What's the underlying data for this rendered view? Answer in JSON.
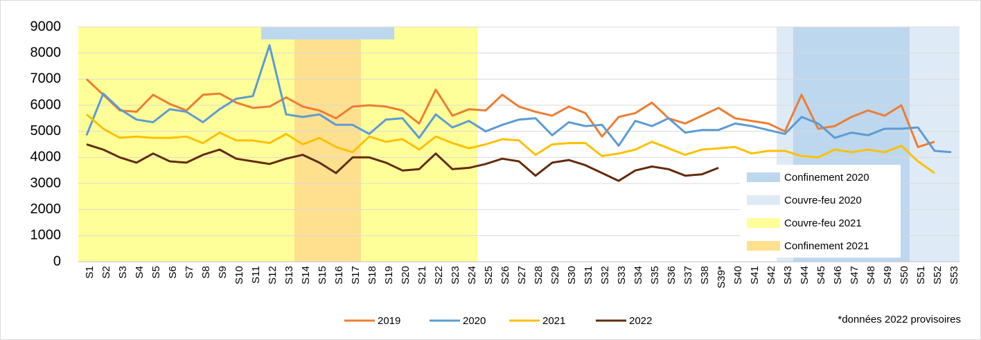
{
  "chart_data": {
    "type": "line",
    "categories": [
      "S1",
      "S2",
      "S3",
      "S4",
      "S5",
      "S6",
      "S7",
      "S8",
      "S9",
      "S10",
      "S11",
      "S12",
      "S13",
      "S14",
      "S15",
      "S16",
      "S17",
      "S18",
      "S19",
      "S20",
      "S21",
      "S22",
      "S23",
      "S24",
      "S25",
      "S26",
      "S27",
      "S28",
      "S29",
      "S30",
      "S31",
      "S32",
      "S33",
      "S34",
      "S35",
      "S36",
      "S37",
      "S38",
      "S39*",
      "S40",
      "S41",
      "S42",
      "S43",
      "S44",
      "S45",
      "S46",
      "S47",
      "S48",
      "S49",
      "S50",
      "S51",
      "S52",
      "S53"
    ],
    "series": [
      {
        "name": "2019",
        "color": "#ed7d31",
        "values": [
          7000,
          6400,
          5800,
          5750,
          6400,
          6050,
          5800,
          6400,
          6450,
          6100,
          5900,
          5950,
          6300,
          5950,
          5800,
          5500,
          5950,
          6000,
          5950,
          5800,
          5300,
          6600,
          5600,
          5850,
          5800,
          6400,
          5950,
          5750,
          5600,
          5950,
          5700,
          4800,
          5550,
          5700,
          6100,
          5500,
          5300,
          5600,
          5900,
          5500,
          5400,
          5300,
          5000,
          6400,
          5100,
          5200,
          5550,
          5800,
          5600,
          6000,
          4400,
          4600,
          null
        ]
      },
      {
        "name": "2020",
        "color": "#5b9bd5",
        "values": [
          4850,
          6450,
          5850,
          5450,
          5350,
          5850,
          5750,
          5350,
          5850,
          6250,
          6350,
          8300,
          5650,
          5550,
          5650,
          5250,
          5250,
          4900,
          5450,
          5500,
          4750,
          5650,
          5150,
          5400,
          5000,
          5250,
          5450,
          5500,
          4850,
          5350,
          5200,
          5250,
          4450,
          5400,
          5200,
          5500,
          4950,
          5050,
          5050,
          5300,
          5200,
          5050,
          4900,
          5550,
          5300,
          4750,
          4950,
          4850,
          5100,
          5100,
          5150,
          4250,
          4200
        ]
      },
      {
        "name": "2021",
        "color": "#ffc000",
        "values": [
          5650,
          5100,
          4750,
          4800,
          4750,
          4750,
          4800,
          4550,
          4950,
          4650,
          4650,
          4550,
          4900,
          4500,
          4750,
          4400,
          4200,
          4800,
          4600,
          4700,
          4300,
          4800,
          4550,
          4350,
          4500,
          4700,
          4650,
          4100,
          4500,
          4550,
          4550,
          4050,
          4150,
          4300,
          4600,
          4350,
          4100,
          4300,
          4350,
          4400,
          4150,
          4250,
          4250,
          4050,
          4000,
          4300,
          4200,
          4300,
          4200,
          4450,
          3850,
          3400,
          null
        ]
      },
      {
        "name": "2022",
        "color": "#632b0c",
        "values": [
          4500,
          4300,
          4000,
          3800,
          4150,
          3850,
          3800,
          4100,
          4300,
          3950,
          3850,
          3750,
          3950,
          4100,
          3800,
          3400,
          4000,
          4000,
          3800,
          3500,
          3550,
          4150,
          3550,
          3600,
          3750,
          3950,
          3850,
          3300,
          3800,
          3900,
          3700,
          3400,
          3100,
          3500,
          3650,
          3550,
          3300,
          3350,
          3600,
          null,
          null,
          null,
          null,
          null,
          null,
          null,
          null,
          null,
          null,
          null,
          null,
          null,
          null
        ]
      }
    ],
    "shading": [
      {
        "name": "Confinement 2020",
        "color": "#bdd7ee",
        "spans": [
          {
            "from": "S12",
            "to": "S19",
            "strip": true
          },
          {
            "from": "S44",
            "to": "S50"
          }
        ]
      },
      {
        "name": "Couvre-feu 2020",
        "color": "#deebf7",
        "spans": [
          {
            "from": "S43",
            "to": "S53"
          }
        ]
      },
      {
        "name": "Couvre-feu 2021",
        "color": "#ffff99",
        "spans": [
          {
            "from": "S1",
            "to": "S24"
          }
        ]
      },
      {
        "name": "Confinement 2021",
        "color": "#ffe08f",
        "spans": [
          {
            "from": "S14",
            "to": "S17"
          }
        ]
      }
    ],
    "ylim": [
      0,
      9000
    ],
    "yticks": [
      0,
      1000,
      2000,
      3000,
      4000,
      5000,
      6000,
      7000,
      8000,
      9000
    ],
    "grid": true,
    "note": "*données 2022 provisoires"
  }
}
